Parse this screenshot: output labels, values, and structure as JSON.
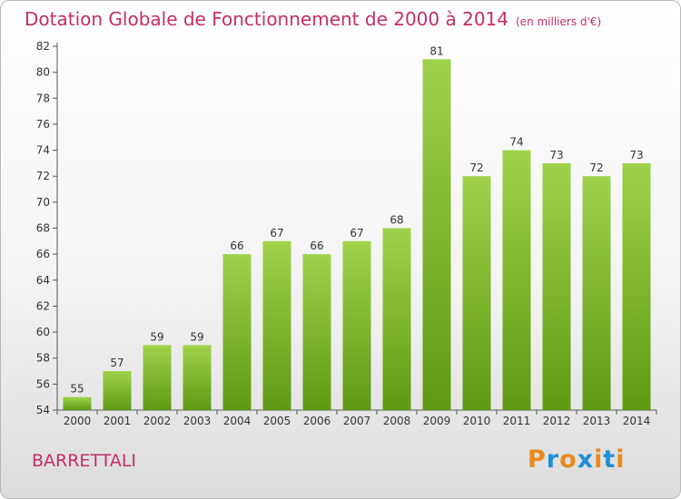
{
  "header": {
    "title": "Dotation Globale de Fonctionnement de 2000 à 2014",
    "unit": "(en milliers d'€)"
  },
  "footer": {
    "place": "BARRETTALI",
    "brand": "Proxiti"
  },
  "colors": {
    "title": "#c42d6b",
    "bar_top": "#9fd24a",
    "bar_bottom": "#5f9a12",
    "axis": "#555555",
    "logo_letters": [
      "#e8891c",
      "#1f8fd6",
      "#e8891c",
      "#1f8fd6",
      "#e8891c",
      "#1f8fd6",
      "#e8891c"
    ]
  },
  "chart_data": {
    "type": "bar",
    "title": "Dotation Globale de Fonctionnement de 2000 à 2014",
    "subtitle": "(en milliers d'€)",
    "xlabel": "",
    "ylabel": "",
    "categories": [
      "2000",
      "2001",
      "2002",
      "2003",
      "2004",
      "2005",
      "2006",
      "2007",
      "2008",
      "2009",
      "2010",
      "2011",
      "2012",
      "2013",
      "2014"
    ],
    "values": [
      55,
      57,
      59,
      59,
      66,
      67,
      66,
      67,
      68,
      81,
      72,
      74,
      73,
      72,
      73
    ],
    "ylim": [
      54,
      82
    ],
    "yticks": [
      54,
      56,
      58,
      60,
      62,
      64,
      66,
      68,
      70,
      72,
      74,
      76,
      78,
      80,
      82
    ],
    "grid": false,
    "data_labels": true
  }
}
